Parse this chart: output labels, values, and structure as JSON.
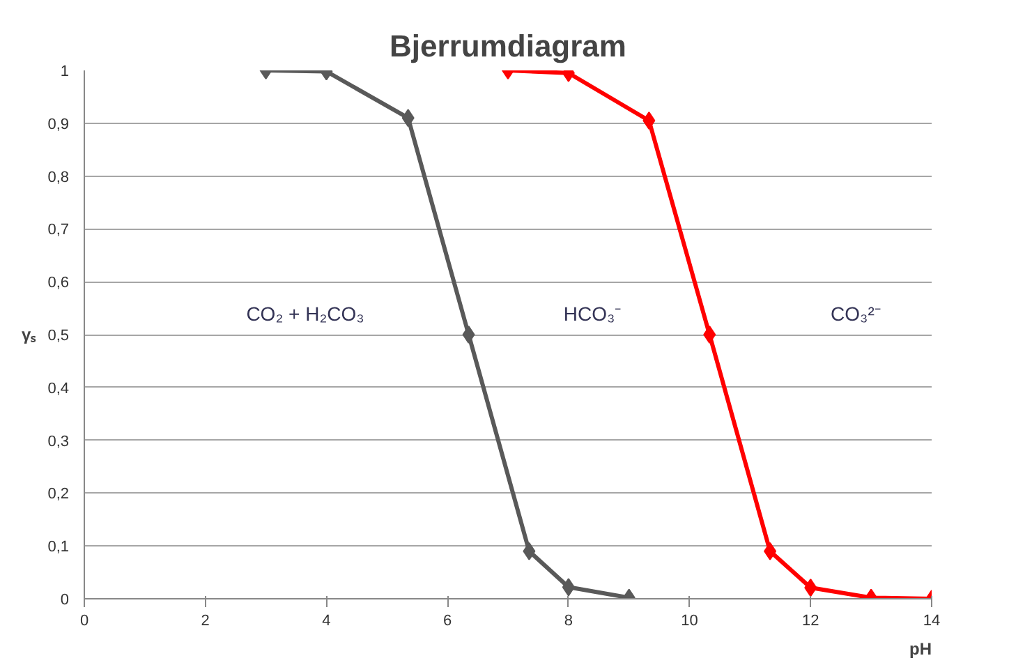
{
  "chart_data": {
    "type": "line",
    "title": "Bjerrumdiagram",
    "xlabel": "pH",
    "ylabel": "γₛ",
    "xlim": [
      0,
      14
    ],
    "xticks": [
      0,
      2,
      4,
      6,
      8,
      10,
      12,
      14
    ],
    "ylim": [
      0,
      1
    ],
    "yticks": [
      0,
      {
        "value": 0.1,
        "label": "0,1"
      },
      {
        "value": 0.2,
        "label": "0,2"
      },
      {
        "value": 0.3,
        "label": "0,3"
      },
      {
        "value": 0.4,
        "label": "0,4"
      },
      {
        "value": 0.5,
        "label": "0,5"
      },
      {
        "value": 0.6,
        "label": "0,6"
      },
      {
        "value": 0.7,
        "label": "0,7"
      },
      {
        "value": 0.8,
        "label": "0,8"
      },
      {
        "value": 0.9,
        "label": "0,9"
      },
      1
    ],
    "grid": "y",
    "marker": "diamond",
    "line_style": "solid",
    "series": [
      {
        "color": "#595959",
        "x": [
          3,
          4,
          5.35,
          6.35,
          7.35,
          8,
          9
        ],
        "values": [
          1,
          0.998,
          0.91,
          0.5,
          0.09,
          0.022,
          0.002
        ]
      },
      {
        "color": "#ff0000",
        "x": [
          7,
          8,
          9.33,
          10.33,
          11.33,
          12,
          13,
          14
        ],
        "values": [
          1,
          0.995,
          0.905,
          0.5,
          0.09,
          0.021,
          0.002,
          0
        ]
      }
    ],
    "annotations": [
      "CO₂ + H₂CO₃",
      "HCO₃⁻",
      "CO₃²⁻"
    ]
  }
}
